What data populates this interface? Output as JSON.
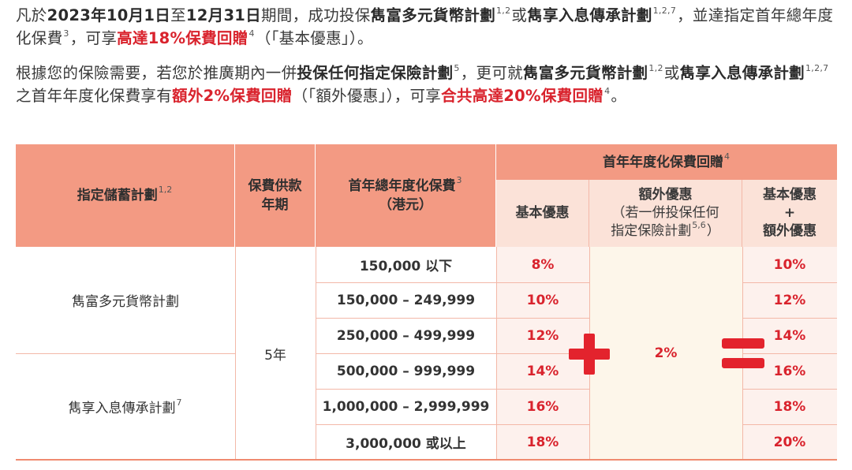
{
  "paragraph1": {
    "t1": "凡於",
    "date_start": "2023年10月1日",
    "t2": "至",
    "date_end": "12月31日",
    "t3": "期間，成功投保",
    "plan_a": "雋富多元貨幣計劃",
    "sup_a": "1,2",
    "t4": "或",
    "plan_b": "雋享入息傳承計劃",
    "sup_b": "1,2,7",
    "t5": "，並達指定首年總年度化保費",
    "sup_c": "3",
    "t6": "，可享",
    "highlight": "高達18%保費回贈",
    "sup_d": "4",
    "t7": "（「基本優惠」）。"
  },
  "paragraph2": {
    "t1": "根據您的保險需要，若您於推廣期內一併",
    "bold1": "投保任何指定保險計劃",
    "sup1": "5",
    "t2": "，更可就",
    "plan_a": "雋富多元貨幣計劃",
    "sup2": "1,2",
    "t3": "或",
    "plan_b": "雋享入息傳承計劃",
    "sup3": "1,2,7",
    "t4": "之首年年度化保費享有",
    "highlight1": "額外2%保費回贈",
    "t5": "（「額外優惠」），可享",
    "highlight2": "合共高達20%保費回贈",
    "sup4": "4",
    "t6": "。"
  },
  "table": {
    "headers": {
      "plan": "指定儲蓄計劃",
      "plan_sup": "1,2",
      "payment_term_l1": "保費供款",
      "payment_term_l2": "年期",
      "premium_l1": "首年總年度化保費",
      "premium_sup": "3",
      "premium_l2": "（港元）",
      "rebate": "首年年度化保費回贈",
      "rebate_sup": "4",
      "basic": "基本優惠",
      "extra_l1": "額外優惠",
      "extra_l2": "（若一併投保任何",
      "extra_l3": "指定保險計劃",
      "extra_sup": "5,6",
      "extra_l3_end": "）",
      "total_l1": "基本優惠",
      "total_l2": "+",
      "total_l3": "額外優惠"
    },
    "plans": [
      {
        "name": "雋富多元貨幣計劃",
        "sup": ""
      },
      {
        "name": "雋享入息傳承計劃",
        "sup": "7"
      }
    ],
    "payment_term": "5年",
    "extra_rebate": "2%",
    "rows": [
      {
        "premium": "150,000 以下",
        "basic": "8%",
        "total": "10%"
      },
      {
        "premium": "150,000 – 249,999",
        "basic": "10%",
        "total": "12%"
      },
      {
        "premium": "250,000 – 499,999",
        "basic": "12%",
        "total": "14%"
      },
      {
        "premium": "500,000 – 999,999",
        "basic": "14%",
        "total": "16%"
      },
      {
        "premium": "1,000,000 – 2,999,999",
        "basic": "16%",
        "total": "18%"
      },
      {
        "premium": "3,000,000 或以上",
        "basic": "18%",
        "total": "20%"
      }
    ],
    "colors": {
      "header": "#f39a83",
      "subheader": "#fbe2d8",
      "accent_red": "#d9232d"
    }
  }
}
